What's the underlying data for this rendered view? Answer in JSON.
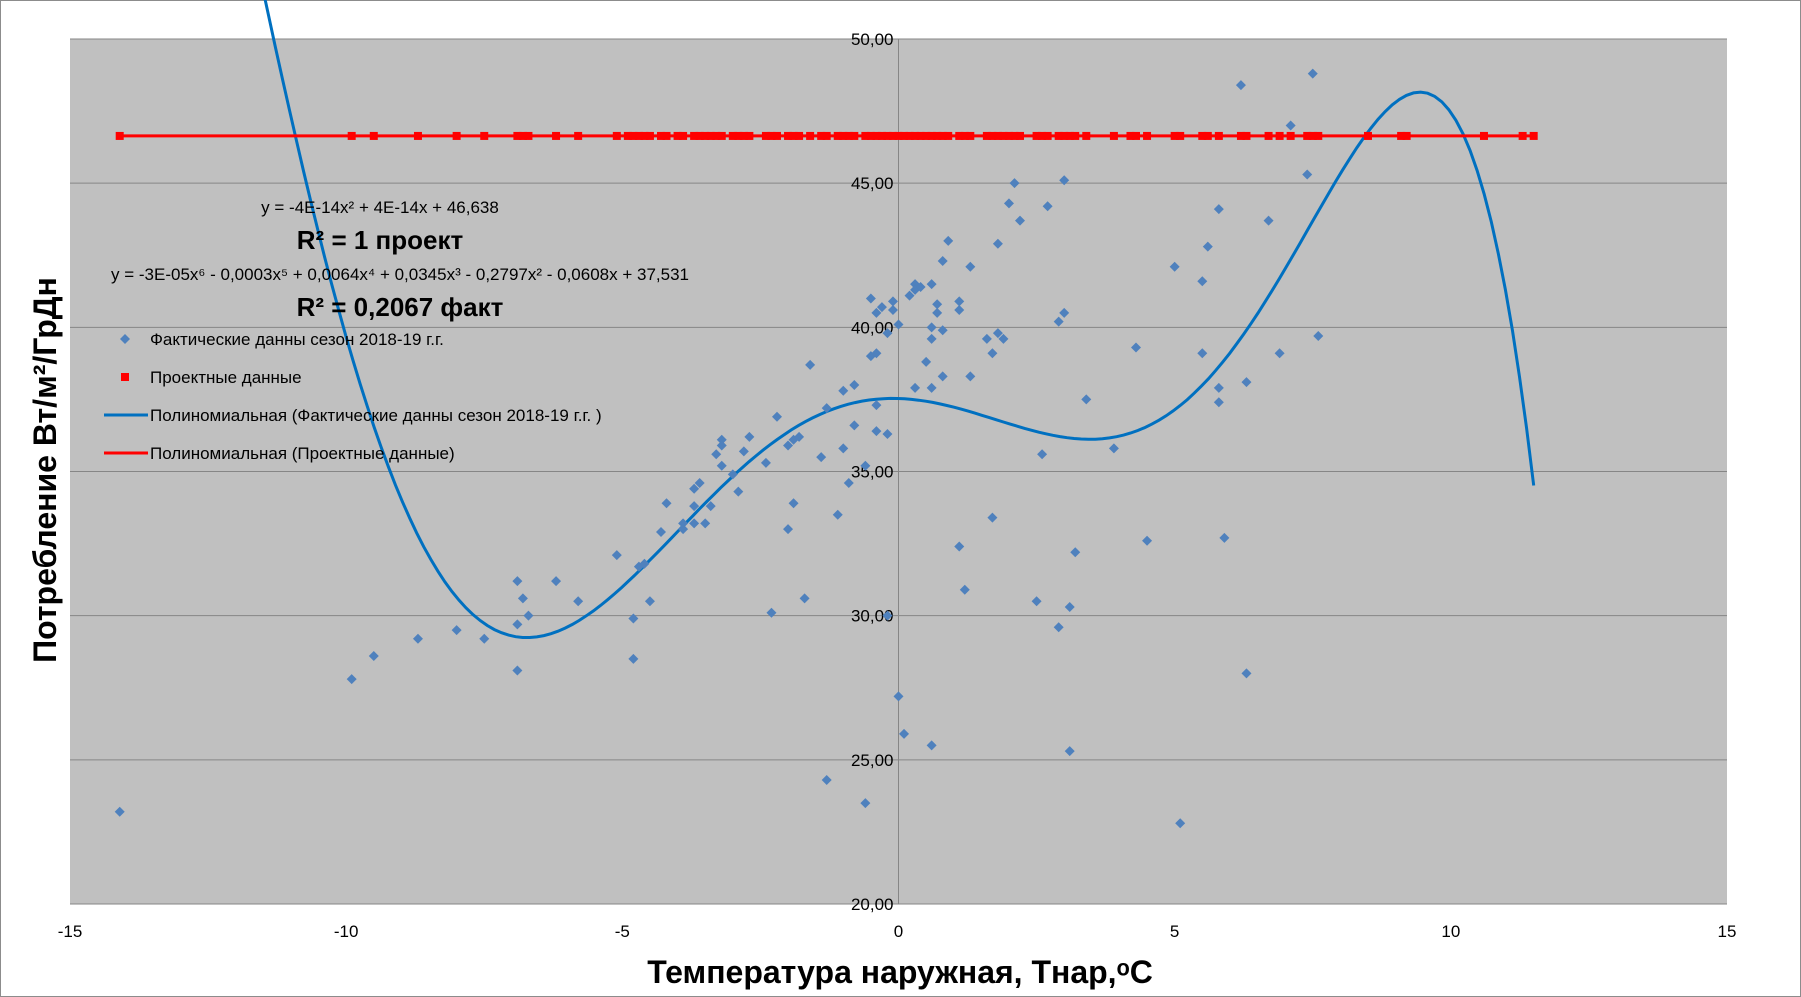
{
  "chart_data": {
    "type": "scatter",
    "xlabel": "Температура наружная, Тнар,ᵒС",
    "ylabel": "Потребление Вт/м²/ГрДн",
    "xlim": [
      -15,
      15
    ],
    "ylim": [
      20,
      50
    ],
    "x_ticks": [
      "-15",
      "-10",
      "-5",
      "0",
      "5",
      "10",
      "15"
    ],
    "y_ticks": [
      "20,00",
      "25,00",
      "30,00",
      "35,00",
      "40,00",
      "45,00",
      "50,00"
    ],
    "grid": true,
    "legend_position": "upper-left",
    "colors": {
      "actual": "#4f81bd",
      "actual_trend": "#0070c0",
      "project": "#ff0000",
      "plot_bg": "#c0c0c0"
    },
    "annotations": {
      "eq_project": "y = -4E-14x² + 4E-14x + 46,638",
      "r2_project": "R² = 1 проект",
      "eq_actual": "y = -3E-05x⁶ - 0,0003x⁵ + 0,0064x⁴ + 0,0345x³ - 0,2797x² - 0,0608x + 37,531",
      "r2_actual": "R² = 0,2067 факт"
    },
    "legend": [
      "Фактические данны сезон 2018-19 г.г.",
      "Проектные данные",
      "Полиномиальная (Фактические данны сезон 2018-19 г.г. )",
      "Полиномиальная (Проектные данные)"
    ],
    "series": [
      {
        "name": "Фактические данны сезон 2018-19 г.г.",
        "marker": "diamond",
        "points": [
          [
            -14.1,
            23.2
          ],
          [
            -9.9,
            27.8
          ],
          [
            -9.5,
            28.6
          ],
          [
            -8.7,
            29.2
          ],
          [
            -8.0,
            29.5
          ],
          [
            -7.5,
            29.2
          ],
          [
            -6.9,
            28.1
          ],
          [
            -6.9,
            29.7
          ],
          [
            -6.9,
            31.2
          ],
          [
            -6.8,
            30.6
          ],
          [
            -6.7,
            30.0
          ],
          [
            -6.2,
            31.2
          ],
          [
            -5.8,
            30.5
          ],
          [
            -5.1,
            32.1
          ],
          [
            -4.8,
            29.9
          ],
          [
            -4.8,
            28.5
          ],
          [
            -4.7,
            31.7
          ],
          [
            -4.6,
            31.8
          ],
          [
            -4.5,
            30.5
          ],
          [
            -4.3,
            32.9
          ],
          [
            -4.2,
            33.9
          ],
          [
            -3.9,
            33.0
          ],
          [
            -3.9,
            33.2
          ],
          [
            -3.7,
            33.2
          ],
          [
            -3.7,
            33.8
          ],
          [
            -3.7,
            34.4
          ],
          [
            -3.6,
            34.6
          ],
          [
            -3.5,
            33.2
          ],
          [
            -3.4,
            33.8
          ],
          [
            -3.3,
            35.6
          ],
          [
            -3.2,
            36.1
          ],
          [
            -3.2,
            35.9
          ],
          [
            -3.2,
            35.2
          ],
          [
            -3.0,
            34.9
          ],
          [
            -2.9,
            34.3
          ],
          [
            -2.8,
            35.7
          ],
          [
            -2.7,
            36.2
          ],
          [
            -2.4,
            35.3
          ],
          [
            -2.3,
            30.1
          ],
          [
            -2.2,
            36.9
          ],
          [
            -2.0,
            33.0
          ],
          [
            -2.0,
            35.9
          ],
          [
            -1.9,
            36.1
          ],
          [
            -1.9,
            33.9
          ],
          [
            -1.8,
            36.2
          ],
          [
            -1.7,
            30.6
          ],
          [
            -1.6,
            38.7
          ],
          [
            -1.4,
            35.5
          ],
          [
            -1.3,
            37.2
          ],
          [
            -1.3,
            24.3
          ],
          [
            -1.1,
            33.5
          ],
          [
            -1.0,
            35.8
          ],
          [
            -1.0,
            37.8
          ],
          [
            -0.9,
            34.6
          ],
          [
            -0.8,
            36.6
          ],
          [
            -0.8,
            38.0
          ],
          [
            -0.6,
            35.2
          ],
          [
            -0.6,
            23.5
          ],
          [
            -0.5,
            39.0
          ],
          [
            -0.5,
            41.0
          ],
          [
            -0.4,
            40.5
          ],
          [
            -0.4,
            36.4
          ],
          [
            -0.4,
            37.3
          ],
          [
            -0.4,
            39.1
          ],
          [
            -0.3,
            40.7
          ],
          [
            -0.2,
            30.0
          ],
          [
            -0.2,
            36.3
          ],
          [
            -0.2,
            39.8
          ],
          [
            -0.1,
            40.6
          ],
          [
            -0.1,
            40.9
          ],
          [
            0.0,
            40.1
          ],
          [
            0.0,
            27.2
          ],
          [
            0.1,
            25.9
          ],
          [
            0.2,
            41.1
          ],
          [
            0.3,
            41.5
          ],
          [
            0.3,
            41.3
          ],
          [
            0.3,
            37.9
          ],
          [
            0.4,
            41.4
          ],
          [
            0.5,
            38.8
          ],
          [
            0.6,
            39.6
          ],
          [
            0.6,
            40.0
          ],
          [
            0.6,
            41.5
          ],
          [
            0.6,
            37.9
          ],
          [
            0.6,
            25.5
          ],
          [
            0.7,
            40.8
          ],
          [
            0.7,
            40.5
          ],
          [
            0.8,
            42.3
          ],
          [
            0.8,
            38.3
          ],
          [
            0.8,
            39.9
          ],
          [
            0.9,
            43.0
          ],
          [
            1.1,
            32.4
          ],
          [
            1.1,
            40.6
          ],
          [
            1.1,
            40.9
          ],
          [
            1.2,
            30.9
          ],
          [
            1.3,
            42.1
          ],
          [
            1.3,
            38.3
          ],
          [
            1.6,
            39.6
          ],
          [
            1.7,
            39.1
          ],
          [
            1.7,
            33.4
          ],
          [
            1.8,
            42.9
          ],
          [
            1.8,
            39.8
          ],
          [
            1.9,
            39.6
          ],
          [
            2.0,
            44.3
          ],
          [
            2.1,
            45.0
          ],
          [
            2.2,
            43.7
          ],
          [
            2.5,
            30.5
          ],
          [
            2.6,
            35.6
          ],
          [
            2.7,
            44.2
          ],
          [
            2.9,
            29.6
          ],
          [
            2.9,
            40.2
          ],
          [
            3.0,
            45.1
          ],
          [
            3.0,
            40.5
          ],
          [
            3.1,
            25.3
          ],
          [
            3.1,
            30.3
          ],
          [
            3.2,
            32.2
          ],
          [
            3.4,
            37.5
          ],
          [
            3.9,
            35.8
          ],
          [
            4.3,
            39.3
          ],
          [
            4.5,
            32.6
          ],
          [
            5.0,
            42.1
          ],
          [
            5.1,
            22.8
          ],
          [
            5.5,
            41.6
          ],
          [
            5.5,
            39.1
          ],
          [
            5.6,
            42.8
          ],
          [
            5.8,
            44.1
          ],
          [
            5.8,
            37.9
          ],
          [
            5.8,
            37.4
          ],
          [
            5.9,
            32.7
          ],
          [
            6.2,
            48.4
          ],
          [
            6.3,
            38.1
          ],
          [
            6.3,
            28.0
          ],
          [
            6.7,
            43.7
          ],
          [
            6.9,
            39.1
          ],
          [
            7.1,
            47.0
          ],
          [
            7.4,
            45.3
          ],
          [
            7.5,
            48.8
          ],
          [
            7.6,
            39.7
          ]
        ]
      },
      {
        "name": "Проектные данные",
        "marker": "square",
        "y": 46.638,
        "x": [
          -14.1,
          -9.9,
          -9.5,
          -8.7,
          -8.0,
          -7.5,
          -6.9,
          -6.8,
          -6.7,
          -6.2,
          -5.8,
          -5.1,
          -4.9,
          -4.8,
          -4.7,
          -4.6,
          -4.5,
          -4.3,
          -4.2,
          -4.0,
          -3.9,
          -3.7,
          -3.6,
          -3.5,
          -3.4,
          -3.3,
          -3.2,
          -3.0,
          -2.9,
          -2.8,
          -2.7,
          -2.4,
          -2.3,
          -2.2,
          -2.0,
          -1.9,
          -1.8,
          -1.6,
          -1.4,
          -1.3,
          -1.1,
          -1.0,
          -0.9,
          -0.8,
          -0.6,
          -0.5,
          -0.4,
          -0.3,
          -0.2,
          -0.1,
          0.0,
          0.1,
          0.2,
          0.3,
          0.4,
          0.5,
          0.6,
          0.7,
          0.8,
          0.9,
          1.1,
          1.2,
          1.3,
          1.6,
          1.7,
          1.8,
          1.9,
          2.0,
          2.1,
          2.2,
          2.5,
          2.6,
          2.7,
          2.9,
          3.0,
          3.1,
          3.2,
          3.4,
          3.9,
          4.2,
          4.3,
          4.5,
          5.0,
          5.1,
          5.5,
          5.6,
          5.8,
          6.2,
          6.3,
          6.7,
          6.9,
          7.1,
          7.4,
          7.5,
          7.6,
          8.5,
          9.1,
          9.2,
          10.6,
          11.3,
          11.5
        ]
      },
      {
        "name": "Полиномиальная (Фактические данны сезон 2018-19 г.г. )",
        "type": "trend",
        "coefficients_desc": [
          -3e-05,
          -0.0003,
          0.0064,
          0.0345,
          -0.2797,
          -0.0608,
          37.531
        ],
        "x_range": [
          -14.1,
          11.5
        ]
      },
      {
        "name": "Полиномиальная (Проектные данные)",
        "type": "trend",
        "coefficients_desc": [
          0,
          0,
          46.638
        ],
        "x_range": [
          -14.1,
          11.5
        ]
      }
    ]
  }
}
